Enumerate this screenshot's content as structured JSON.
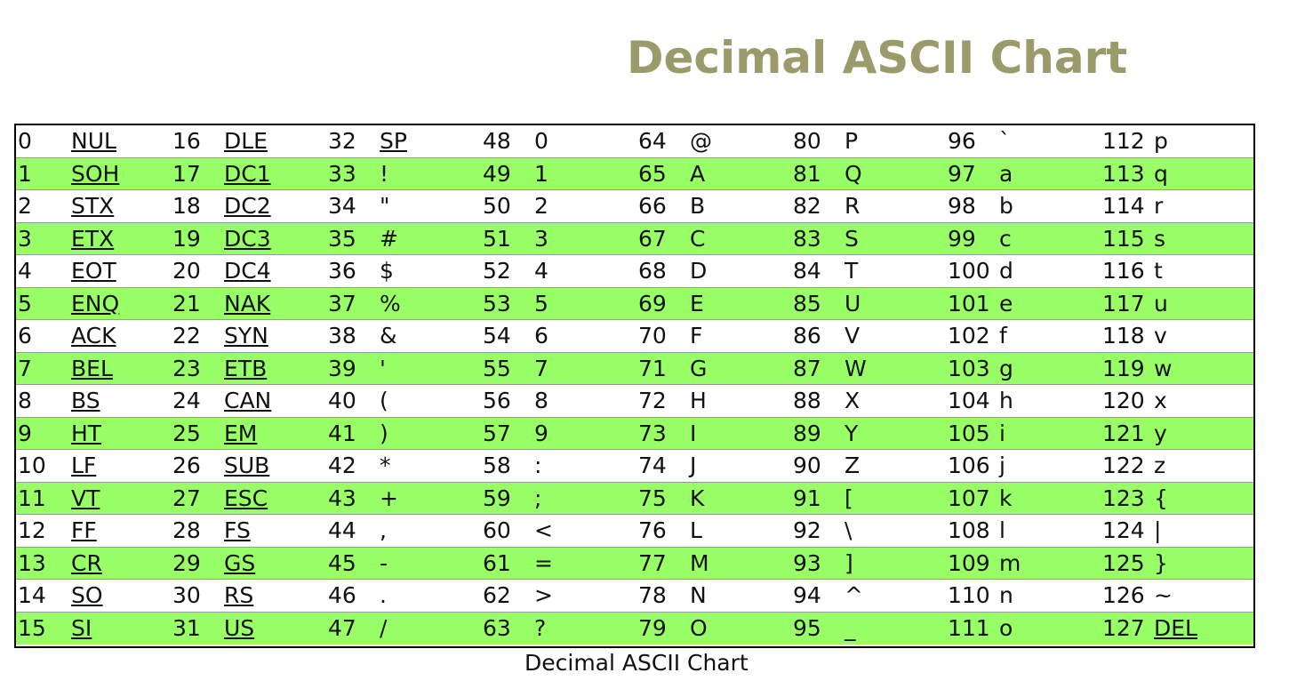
{
  "page_title": "Decimal ASCII Chart",
  "caption": "Decimal ASCII Chart",
  "colors": {
    "title": "#9a9a6a",
    "stripe": "#99ff66",
    "border": "#000000"
  },
  "rows": [
    [
      [
        "0",
        "NUL"
      ],
      [
        "16",
        "DLE"
      ],
      [
        "32",
        "SP"
      ],
      [
        "48",
        "0"
      ],
      [
        "64",
        "@"
      ],
      [
        "80",
        "P"
      ],
      [
        "96",
        "`"
      ],
      [
        "112",
        "p"
      ]
    ],
    [
      [
        "1",
        "SOH"
      ],
      [
        "17",
        "DC1"
      ],
      [
        "33",
        "!"
      ],
      [
        "49",
        "1"
      ],
      [
        "65",
        "A"
      ],
      [
        "81",
        "Q"
      ],
      [
        "97",
        "a"
      ],
      [
        "113",
        "q"
      ]
    ],
    [
      [
        "2",
        "STX"
      ],
      [
        "18",
        "DC2"
      ],
      [
        "34",
        "\""
      ],
      [
        "50",
        "2"
      ],
      [
        "66",
        "B"
      ],
      [
        "82",
        "R"
      ],
      [
        "98",
        "b"
      ],
      [
        "114",
        "r"
      ]
    ],
    [
      [
        "3",
        "ETX"
      ],
      [
        "19",
        "DC3"
      ],
      [
        "35",
        "#"
      ],
      [
        "51",
        "3"
      ],
      [
        "67",
        "C"
      ],
      [
        "83",
        "S"
      ],
      [
        "99",
        "c"
      ],
      [
        "115",
        "s"
      ]
    ],
    [
      [
        "4",
        "EOT"
      ],
      [
        "20",
        "DC4"
      ],
      [
        "36",
        "$"
      ],
      [
        "52",
        "4"
      ],
      [
        "68",
        "D"
      ],
      [
        "84",
        "T"
      ],
      [
        "100",
        "d"
      ],
      [
        "116",
        "t"
      ]
    ],
    [
      [
        "5",
        "ENQ"
      ],
      [
        "21",
        "NAK"
      ],
      [
        "37",
        "%"
      ],
      [
        "53",
        "5"
      ],
      [
        "69",
        "E"
      ],
      [
        "85",
        "U"
      ],
      [
        "101",
        "e"
      ],
      [
        "117",
        "u"
      ]
    ],
    [
      [
        "6",
        "ACK"
      ],
      [
        "22",
        "SYN"
      ],
      [
        "38",
        "&"
      ],
      [
        "54",
        "6"
      ],
      [
        "70",
        "F"
      ],
      [
        "86",
        "V"
      ],
      [
        "102",
        "f"
      ],
      [
        "118",
        "v"
      ]
    ],
    [
      [
        "7",
        "BEL"
      ],
      [
        "23",
        "ETB"
      ],
      [
        "39",
        "'"
      ],
      [
        "55",
        "7"
      ],
      [
        "71",
        "G"
      ],
      [
        "87",
        "W"
      ],
      [
        "103",
        "g"
      ],
      [
        "119",
        "w"
      ]
    ],
    [
      [
        "8",
        "BS"
      ],
      [
        "24",
        "CAN"
      ],
      [
        "40",
        "("
      ],
      [
        "56",
        "8"
      ],
      [
        "72",
        "H"
      ],
      [
        "88",
        "X"
      ],
      [
        "104",
        "h"
      ],
      [
        "120",
        "x"
      ]
    ],
    [
      [
        "9",
        "HT"
      ],
      [
        "25",
        "EM"
      ],
      [
        "41",
        ")"
      ],
      [
        "57",
        "9"
      ],
      [
        "73",
        "I"
      ],
      [
        "89",
        "Y"
      ],
      [
        "105",
        "i"
      ],
      [
        "121",
        "y"
      ]
    ],
    [
      [
        "10",
        "LF"
      ],
      [
        "26",
        "SUB"
      ],
      [
        "42",
        "*"
      ],
      [
        "58",
        ":"
      ],
      [
        "74",
        "J"
      ],
      [
        "90",
        "Z"
      ],
      [
        "106",
        "j"
      ],
      [
        "122",
        "z"
      ]
    ],
    [
      [
        "11",
        "VT"
      ],
      [
        "27",
        "ESC"
      ],
      [
        "43",
        "+"
      ],
      [
        "59",
        ";"
      ],
      [
        "75",
        "K"
      ],
      [
        "91",
        "["
      ],
      [
        "107",
        "k"
      ],
      [
        "123",
        "{"
      ]
    ],
    [
      [
        "12",
        "FF"
      ],
      [
        "28",
        "FS"
      ],
      [
        "44",
        ","
      ],
      [
        "60",
        "<"
      ],
      [
        "76",
        "L"
      ],
      [
        "92",
        "\\"
      ],
      [
        "108",
        "l"
      ],
      [
        "124",
        "|"
      ]
    ],
    [
      [
        "13",
        "CR"
      ],
      [
        "29",
        "GS"
      ],
      [
        "45",
        "-"
      ],
      [
        "61",
        "="
      ],
      [
        "77",
        "M"
      ],
      [
        "93",
        "]"
      ],
      [
        "109",
        "m"
      ],
      [
        "125",
        "}"
      ]
    ],
    [
      [
        "14",
        "SO"
      ],
      [
        "30",
        "RS"
      ],
      [
        "46",
        "."
      ],
      [
        "62",
        ">"
      ],
      [
        "78",
        "N"
      ],
      [
        "94",
        "^"
      ],
      [
        "110",
        "n"
      ],
      [
        "126",
        "~"
      ]
    ],
    [
      [
        "15",
        "SI"
      ],
      [
        "31",
        "US"
      ],
      [
        "47",
        "/"
      ],
      [
        "63",
        "?"
      ],
      [
        "79",
        "O"
      ],
      [
        "95",
        "_"
      ],
      [
        "111",
        "o"
      ],
      [
        "127",
        "DEL"
      ]
    ]
  ]
}
